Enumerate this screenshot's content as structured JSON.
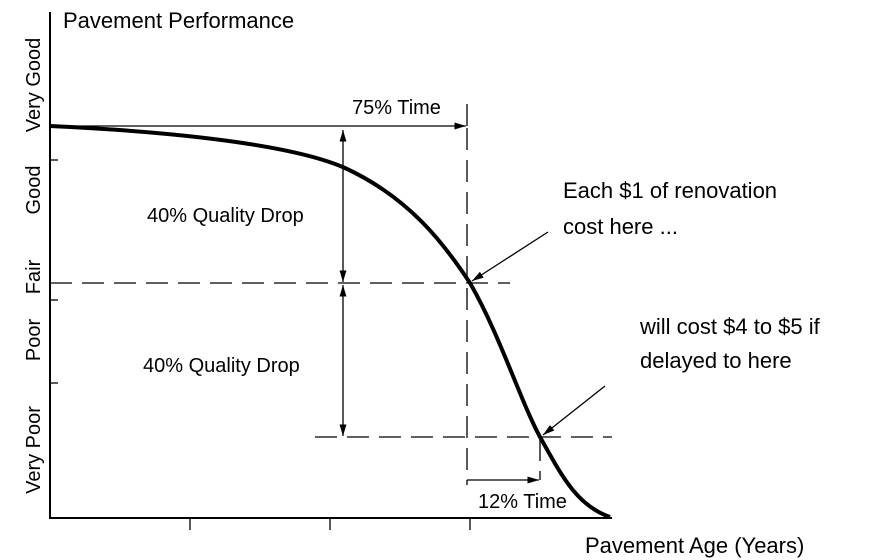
{
  "title": "Pavement Performance",
  "x_axis_label": "Pavement Age (Years)",
  "y_levels": [
    "Very Good",
    "Good",
    "Fair",
    "Poor",
    "Very Poor"
  ],
  "annotations": {
    "time_75": "75% Time",
    "drop_1": "40% Quality Drop",
    "drop_2": "40% Quality Drop",
    "note_1": [
      "Each $1 of renovation",
      "cost here ..."
    ],
    "note_2": [
      "will cost $4 to $5 if",
      "delayed to here"
    ],
    "time_12": "12% Time"
  }
}
